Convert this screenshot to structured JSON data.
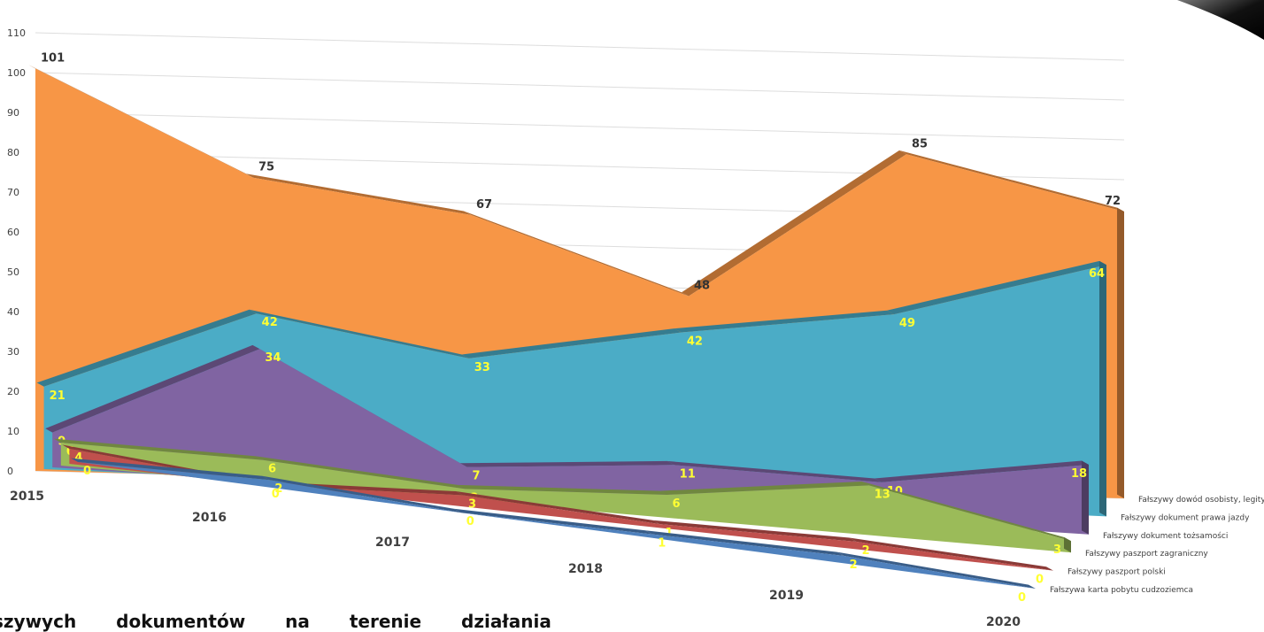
{
  "caption": "szywych dokumentów na terenie działania",
  "chart_data": {
    "type": "area",
    "view": "3d",
    "categories": [
      "2015",
      "2016",
      "2017",
      "2018",
      "2019",
      "2020"
    ],
    "yticks": [
      0,
      10,
      20,
      30,
      40,
      50,
      60,
      70,
      80,
      90,
      100,
      110
    ],
    "ylim": [
      0,
      110
    ],
    "grid": true,
    "legend_position": "right",
    "series": [
      {
        "name": "Fałszywy dowód osobisty, legitymacja",
        "values": [
          101,
          75,
          67,
          48,
          85,
          72
        ],
        "color": "#f79646"
      },
      {
        "name": "Fałszywy dokument prawa jazdy",
        "values": [
          21,
          42,
          33,
          42,
          49,
          64
        ],
        "color": "#4bacc6"
      },
      {
        "name": "Fałszywy dokument tożsamości",
        "values": [
          9,
          34,
          7,
          11,
          10,
          18
        ],
        "color": "#8064a2"
      },
      {
        "name": "Fałszywy paszport zagraniczny",
        "values": [
          6,
          6,
          3,
          6,
          13,
          3
        ],
        "color": "#9bbb59"
      },
      {
        "name": "Fałszywy paszport polski",
        "values": [
          4,
          0,
          3,
          1,
          2,
          0
        ],
        "color": "#c0504d"
      },
      {
        "name": "Fałszywa karta pobytu cudzoziemca",
        "values": [
          0,
          2,
          0,
          1,
          2,
          0
        ],
        "color": "#4f81bd"
      }
    ]
  }
}
